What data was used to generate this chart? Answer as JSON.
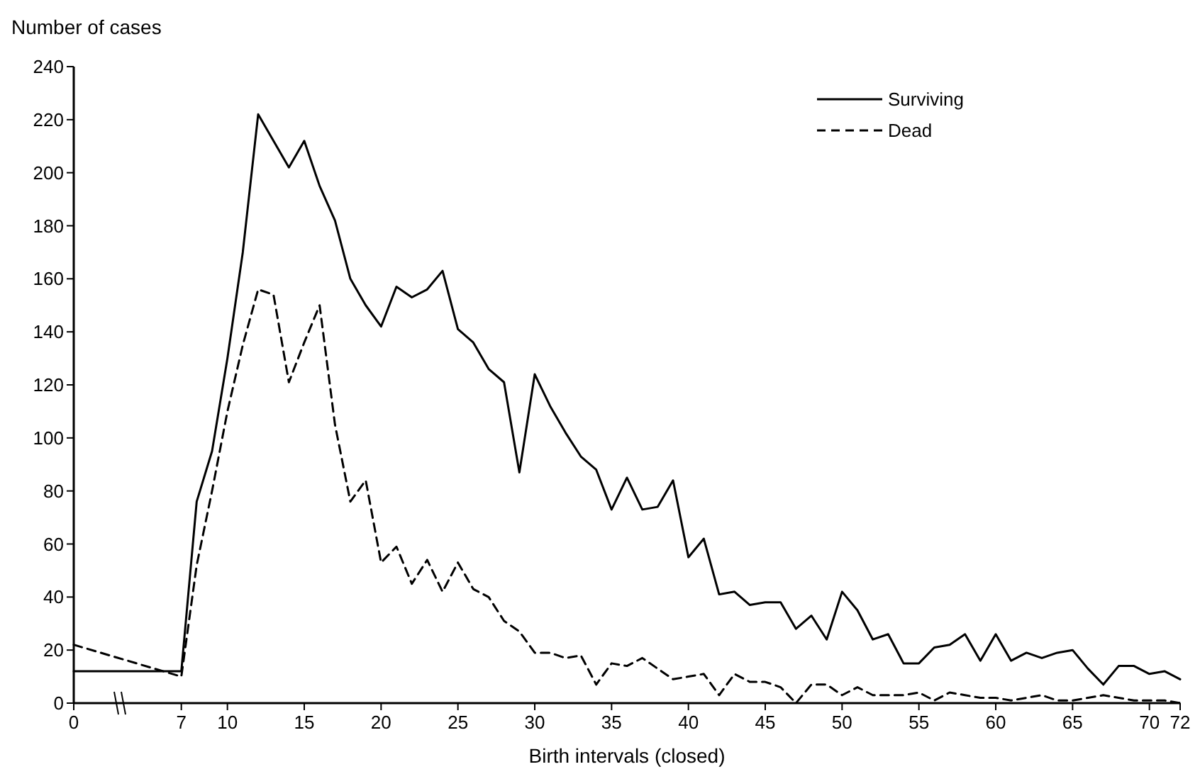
{
  "chart_data": {
    "type": "line",
    "ylabel": "Number of cases",
    "xlabel": "Birth intervals (closed)",
    "xlim": [
      0,
      72
    ],
    "ylim": [
      0,
      240
    ],
    "xticks": [
      0,
      7,
      10,
      15,
      20,
      25,
      30,
      35,
      40,
      45,
      50,
      55,
      60,
      65,
      70,
      72
    ],
    "yticks": [
      0,
      20,
      40,
      60,
      80,
      100,
      120,
      140,
      160,
      180,
      200,
      220,
      240
    ],
    "legend": "top right",
    "grid": false,
    "series": [
      {
        "name": "Surviving",
        "color": "#000000",
        "line_style": "solid",
        "x": [
          0,
          7,
          8,
          9,
          10,
          11,
          12,
          13,
          14,
          15,
          16,
          17,
          18,
          19,
          20,
          21,
          22,
          23,
          24,
          25,
          26,
          27,
          28,
          29,
          30,
          31,
          32,
          33,
          34,
          35,
          36,
          37,
          38,
          39,
          40,
          41,
          42,
          43,
          44,
          45,
          46,
          47,
          48,
          49,
          50,
          51,
          52,
          53,
          54,
          55,
          56,
          57,
          58,
          59,
          60,
          61,
          62,
          63,
          64,
          65,
          66,
          67,
          68,
          69,
          70,
          71,
          72
        ],
        "values": [
          12,
          12,
          76,
          95,
          130,
          170,
          222,
          212,
          202,
          212,
          195,
          182,
          160,
          150,
          142,
          157,
          153,
          156,
          163,
          141,
          136,
          126,
          121,
          87,
          124,
          112,
          102,
          93,
          88,
          73,
          85,
          73,
          74,
          84,
          55,
          62,
          41,
          42,
          37,
          38,
          38,
          28,
          33,
          24,
          42,
          35,
          24,
          26,
          15,
          15,
          21,
          22,
          26,
          16,
          26,
          16,
          19,
          17,
          19,
          20,
          13,
          7,
          14,
          14,
          11,
          12,
          9
        ]
      },
      {
        "name": "Dead",
        "color": "#000000",
        "line_style": "dashed",
        "x": [
          0,
          7,
          8,
          9,
          10,
          11,
          12,
          13,
          14,
          15,
          16,
          17,
          18,
          19,
          20,
          21,
          22,
          23,
          24,
          25,
          26,
          27,
          28,
          29,
          30,
          31,
          32,
          33,
          34,
          35,
          36,
          37,
          38,
          39,
          40,
          41,
          42,
          43,
          44,
          45,
          46,
          47,
          48,
          49,
          50,
          51,
          52,
          53,
          54,
          55,
          56,
          57,
          58,
          59,
          60,
          61,
          62,
          63,
          64,
          65,
          66,
          67,
          68,
          69,
          70,
          71,
          72
        ],
        "values": [
          22,
          10,
          52,
          80,
          110,
          135,
          156,
          154,
          121,
          136,
          150,
          105,
          76,
          84,
          53,
          59,
          45,
          54,
          42,
          53,
          43,
          40,
          31,
          27,
          19,
          19,
          17,
          18,
          7,
          15,
          14,
          17,
          13,
          9,
          10,
          11,
          3,
          11,
          8,
          8,
          6,
          0,
          7,
          7,
          3,
          6,
          3,
          3,
          3,
          4,
          1,
          4,
          3,
          2,
          2,
          1,
          2,
          3,
          1,
          1,
          2,
          3,
          2,
          1,
          1,
          1,
          0
        ]
      }
    ]
  }
}
